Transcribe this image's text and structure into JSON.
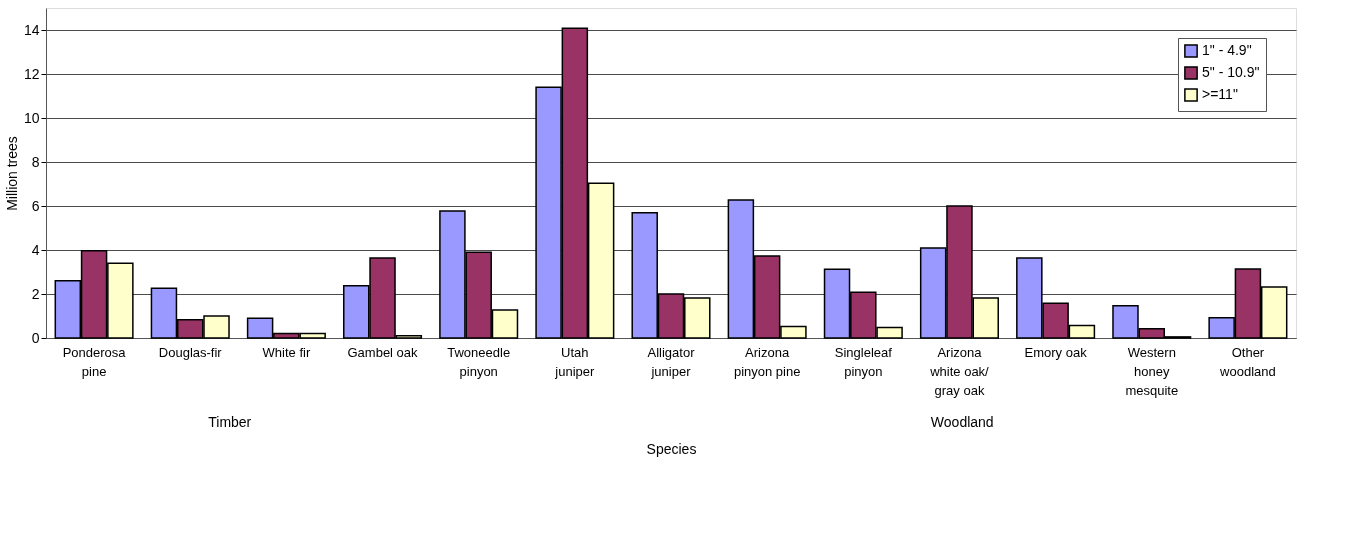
{
  "chart_data": {
    "type": "bar",
    "xlabel": "Species",
    "ylabel": "Million trees",
    "categories": [
      "Ponderosa pine",
      "Douglas-fir",
      "White fir",
      "Gambel oak",
      "Twoneedle pinyon",
      "Utah juniper",
      "Alligator juniper",
      "Arizona pinyon pine",
      "Singleleaf pinyon",
      "Arizona white oak/ gray oak",
      "Emory oak",
      "Western honey mesquite",
      "Other woodland"
    ],
    "series": [
      {
        "name": "1\" - 4.9\"",
        "color": "#9999ff",
        "values": [
          2.6,
          2.26,
          0.9,
          2.38,
          5.77,
          11.4,
          5.69,
          6.27,
          3.13,
          4.09,
          3.64,
          1.47,
          0.92
        ]
      },
      {
        "name": "5\" - 10.9\"",
        "color": "#993366",
        "values": [
          3.97,
          0.83,
          0.2,
          3.64,
          3.9,
          14.08,
          2.0,
          3.73,
          2.08,
          6.0,
          1.58,
          0.42,
          3.14
        ]
      },
      {
        "name": ">=11\"",
        "color": "#ffffcc",
        "values": [
          3.4,
          1.0,
          0.2,
          0.1,
          1.27,
          7.03,
          1.82,
          0.52,
          0.48,
          1.82,
          0.57,
          0.05,
          2.32
        ]
      }
    ],
    "ylim": [
      0,
      15
    ],
    "yticks": [
      0,
      2,
      4,
      6,
      8,
      10,
      12,
      14
    ],
    "grid": "y",
    "legend": "top right",
    "annotations": [
      "Timber",
      "Woodland"
    ]
  }
}
